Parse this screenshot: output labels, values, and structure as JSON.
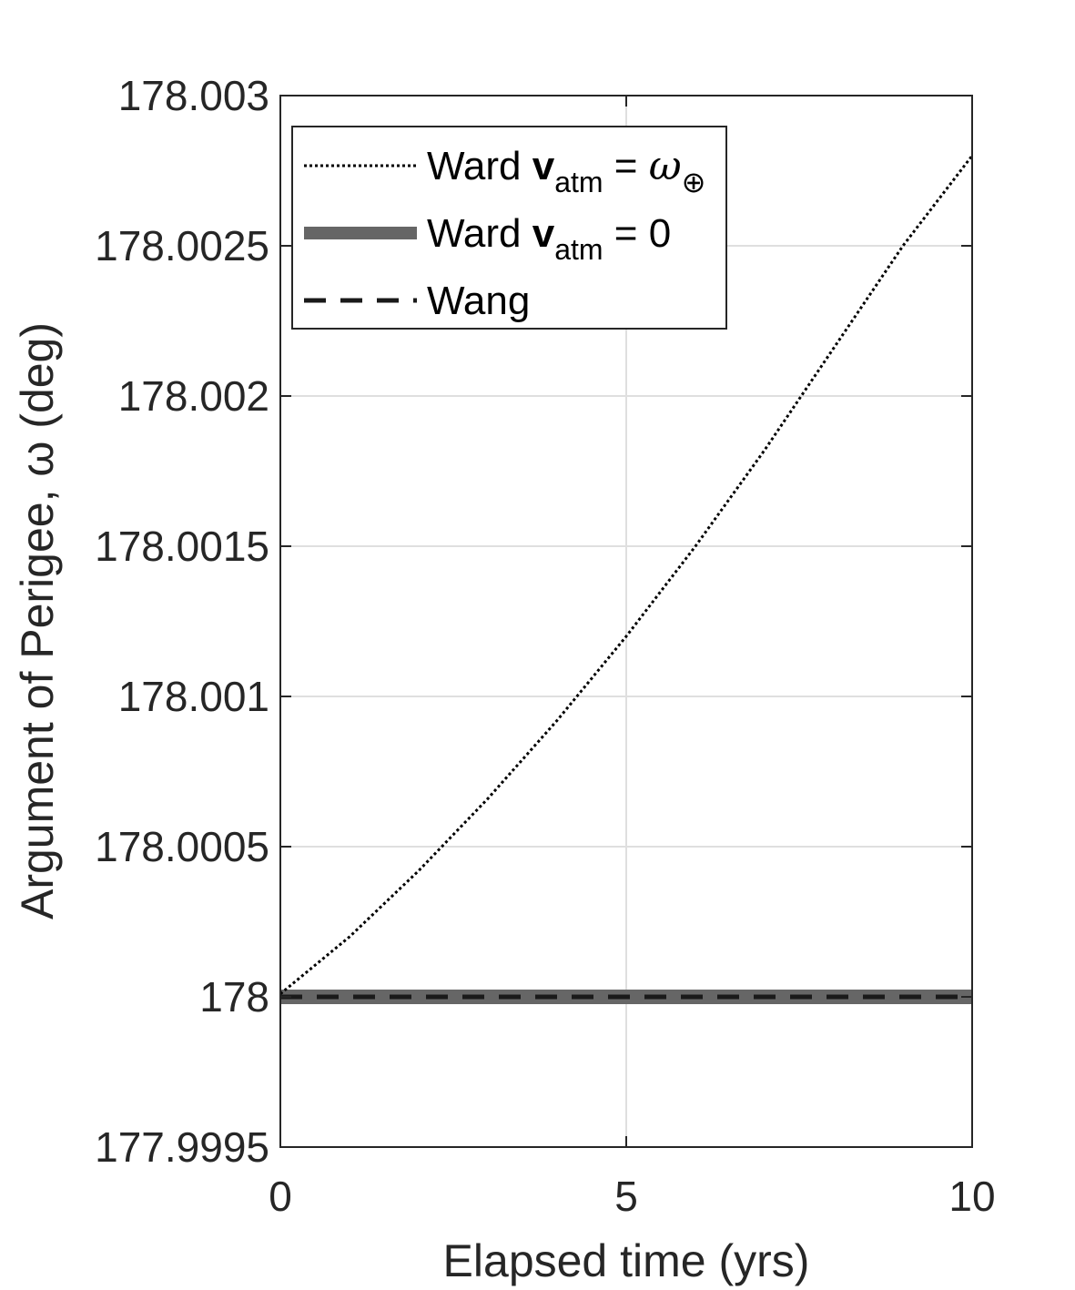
{
  "chart_data": {
    "type": "line",
    "xlabel": "Elapsed time (yrs)",
    "ylabel": "Argument of Perigee, ω (deg)",
    "xlim": [
      0,
      10
    ],
    "ylim": [
      177.9995,
      178.003
    ],
    "xticks": [
      0,
      5,
      10
    ],
    "xtick_labels": [
      "0",
      "5",
      "10"
    ],
    "yticks": [
      177.9995,
      178.0,
      178.0005,
      178.001,
      178.0015,
      178.002,
      178.0025,
      178.003
    ],
    "ytick_labels": [
      "177.9995",
      "178",
      "178.0005",
      "178.001",
      "178.0015",
      "178.002",
      "178.0025",
      "178.003"
    ],
    "grid": true,
    "legend_position": "top-left",
    "series": [
      {
        "name": "Ward v_atm = ω_⊕",
        "legend": {
          "pre": "Ward ",
          "bold": "v",
          "sub": "atm",
          "mid": " = ",
          "ital": "ω",
          "sub2": "⊕"
        },
        "style": "dotted",
        "color": "#000000",
        "x": [
          0,
          1,
          2,
          3,
          4,
          5,
          6,
          7,
          8,
          9,
          10
        ],
        "y": [
          178.00001,
          178.0002,
          178.00042,
          178.00066,
          178.00092,
          178.0012,
          178.0015,
          178.00182,
          178.00216,
          178.0025,
          178.0028
        ]
      },
      {
        "name": "Ward v_atm = 0",
        "legend": {
          "pre": "Ward ",
          "bold": "v",
          "sub": "atm",
          "mid": " = 0"
        },
        "style": "thick",
        "color": "#666666",
        "x": [
          0,
          10
        ],
        "y": [
          178.0,
          178.0
        ]
      },
      {
        "name": "Wang",
        "legend": {
          "pre": "Wang"
        },
        "style": "dashed",
        "color": "#1a1a1a",
        "x": [
          0,
          10
        ],
        "y": [
          178.0,
          178.0
        ]
      }
    ]
  }
}
